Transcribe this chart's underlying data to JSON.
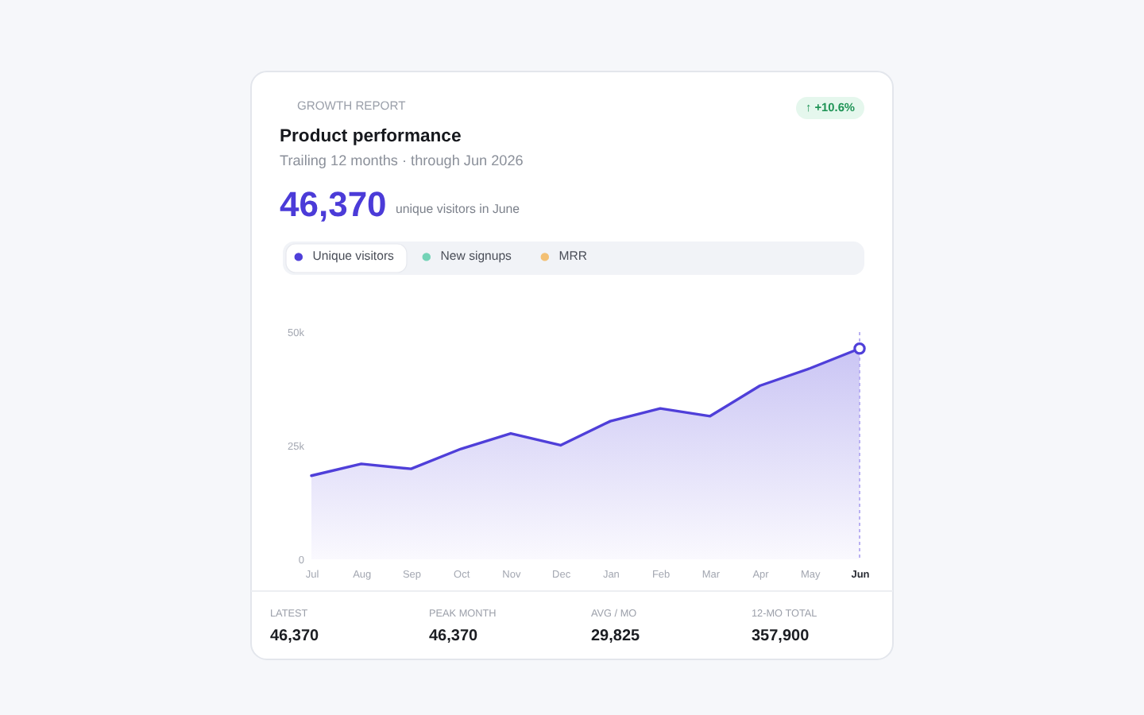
{
  "chart_data": {
    "type": "area",
    "title": "Product performance",
    "subtitle": "Trailing 12 months · through Jun 2026",
    "categories": [
      "Jul",
      "Aug",
      "Sep",
      "Oct",
      "Nov",
      "Dec",
      "Jan",
      "Feb",
      "Mar",
      "Apr",
      "May",
      "Jun"
    ],
    "series": [
      {
        "name": "Unique visitors",
        "color": "#4f3fd9",
        "values": [
          18400,
          21000,
          19900,
          24300,
          27700,
          25100,
          30400,
          33200,
          31500,
          38200,
          42000,
          46370
        ]
      },
      {
        "name": "New signups",
        "color": "#74d3b7",
        "values": [
          null,
          null,
          null,
          null,
          null,
          null,
          null,
          null,
          null,
          null,
          null,
          null
        ]
      },
      {
        "name": "MRR",
        "color": "#f3c074",
        "values": [
          null,
          null,
          null,
          null,
          null,
          null,
          null,
          null,
          null,
          null,
          null,
          null
        ]
      },
      {
        "type": "scatter",
        "x": [
          "Jun"
        ],
        "values": [
          46370
        ],
        "color": "#4f3fd9",
        "marker": "circle"
      }
    ],
    "ylim": [
      0,
      50000
    ],
    "yticks": [
      0,
      {
        "value": 25000,
        "label": "25k"
      },
      {
        "value": 50000,
        "label": "50k"
      }
    ],
    "ref_lines": [
      {
        "axis": "x",
        "value": "Jun",
        "color": "#b9b0f2",
        "line_style": "dotted"
      }
    ],
    "legend": "top",
    "annotations": [
      "GROWTH REPORT",
      "↑ +10.6%",
      "46,370",
      "unique visitors in June",
      "LATEST",
      "46,370",
      "PEAK MONTH",
      "46,370",
      "AVG / MO",
      "29,825",
      "12-MO TOTAL",
      "357,900"
    ]
  }
}
